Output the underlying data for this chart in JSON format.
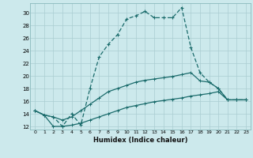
{
  "xlabel": "Humidex (Indice chaleur)",
  "background_color": "#cce9ec",
  "grid_color": "#aacdd1",
  "line_color": "#1a6b6b",
  "xlim": [
    -0.5,
    23.5
  ],
  "ylim": [
    11.5,
    31.5
  ],
  "yticks": [
    12,
    14,
    16,
    18,
    20,
    22,
    24,
    26,
    28,
    30
  ],
  "xticks": [
    0,
    1,
    2,
    3,
    4,
    5,
    6,
    7,
    8,
    9,
    10,
    11,
    12,
    13,
    14,
    15,
    16,
    17,
    18,
    19,
    20,
    21,
    22,
    23
  ],
  "line1_x": [
    0,
    1,
    2,
    3,
    4,
    5,
    6,
    7,
    8,
    9,
    10,
    11,
    12,
    13,
    14,
    15,
    16,
    17,
    18,
    19,
    20,
    21,
    22,
    23
  ],
  "line1_y": [
    14.5,
    13.8,
    13.5,
    12.0,
    14.0,
    12.2,
    18.0,
    23.0,
    25.0,
    26.5,
    29.0,
    29.5,
    30.2,
    29.2,
    29.2,
    29.2,
    30.8,
    24.5,
    20.5,
    19.0,
    18.0,
    16.2,
    16.2,
    16.2
  ],
  "line2_x": [
    0,
    1,
    2,
    3,
    4,
    5,
    6,
    7,
    8,
    9,
    10,
    11,
    12,
    13,
    14,
    15,
    16,
    17,
    18,
    19,
    20,
    21,
    22,
    23
  ],
  "line2_y": [
    14.5,
    13.8,
    13.5,
    13.0,
    13.5,
    14.5,
    15.5,
    16.5,
    17.5,
    18.0,
    18.5,
    19.0,
    19.3,
    19.5,
    19.7,
    19.9,
    20.2,
    20.5,
    19.2,
    19.0,
    18.0,
    16.2,
    16.2,
    16.2
  ],
  "line3_x": [
    0,
    1,
    2,
    3,
    4,
    5,
    6,
    7,
    8,
    9,
    10,
    11,
    12,
    13,
    14,
    15,
    16,
    17,
    18,
    19,
    20,
    21,
    22,
    23
  ],
  "line3_y": [
    14.5,
    13.8,
    12.0,
    12.0,
    12.2,
    12.5,
    13.0,
    13.5,
    14.0,
    14.5,
    15.0,
    15.3,
    15.6,
    15.9,
    16.1,
    16.3,
    16.5,
    16.8,
    17.0,
    17.2,
    17.5,
    16.2,
    16.2,
    16.2
  ]
}
